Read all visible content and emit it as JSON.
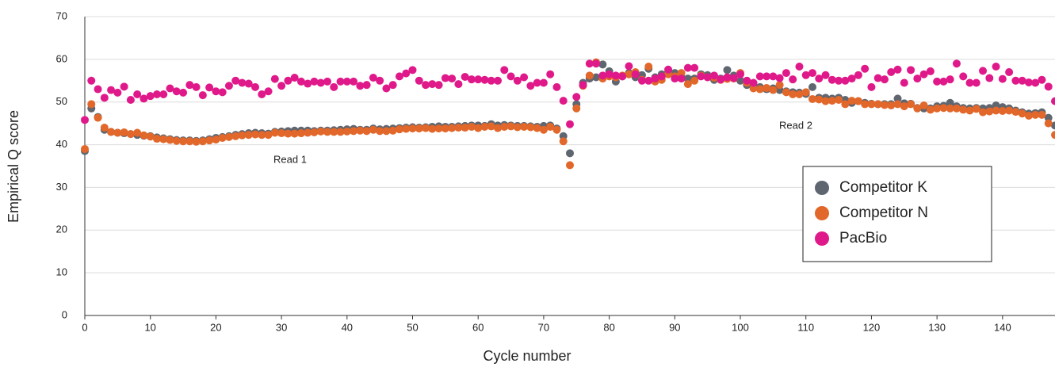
{
  "chart_data": {
    "type": "scatter",
    "xlabel": "Cycle number",
    "ylabel": "Empirical Q score",
    "annotations": [
      "Read 1",
      "Read 2"
    ],
    "xlim": [
      0,
      148
    ],
    "ylim": [
      0,
      70
    ],
    "xticks": [
      0,
      10,
      20,
      30,
      40,
      50,
      60,
      70,
      80,
      90,
      100,
      110,
      120,
      130,
      140
    ],
    "yticks": [
      0,
      10,
      20,
      30,
      40,
      50,
      60,
      70
    ],
    "grid": true,
    "legend": "right",
    "x": [
      0,
      1,
      2,
      3,
      4,
      5,
      6,
      7,
      8,
      9,
      10,
      11,
      12,
      13,
      14,
      15,
      16,
      17,
      18,
      19,
      20,
      21,
      22,
      23,
      24,
      25,
      26,
      27,
      28,
      29,
      30,
      31,
      32,
      33,
      34,
      35,
      36,
      37,
      38,
      39,
      40,
      41,
      42,
      43,
      44,
      45,
      46,
      47,
      48,
      49,
      50,
      51,
      52,
      53,
      54,
      55,
      56,
      57,
      58,
      59,
      60,
      61,
      62,
      63,
      64,
      65,
      66,
      67,
      68,
      69,
      70,
      71,
      72,
      73,
      74,
      75,
      76,
      77,
      78,
      79,
      80,
      81,
      82,
      83,
      84,
      85,
      86,
      87,
      88,
      89,
      90,
      91,
      92,
      93,
      94,
      95,
      96,
      97,
      98,
      99,
      100,
      101,
      102,
      103,
      104,
      105,
      106,
      107,
      108,
      109,
      110,
      111,
      112,
      113,
      114,
      115,
      116,
      117,
      118,
      119,
      120,
      121,
      122,
      123,
      124,
      125,
      126,
      127,
      128,
      129,
      130,
      131,
      132,
      133,
      134,
      135,
      136,
      137,
      138,
      139,
      140,
      141,
      142,
      143,
      144,
      145,
      146,
      147,
      148
    ],
    "series": [
      {
        "name": "Competitor K",
        "color": "#5f6670",
        "values": [
          38.5,
          48.5,
          46.5,
          43.5,
          43,
          42.8,
          42.7,
          42.5,
          42.3,
          42.1,
          42,
          41.7,
          41.5,
          41.3,
          41.1,
          41,
          41,
          40.9,
          41,
          41.3,
          41.6,
          41.8,
          42,
          42.3,
          42.5,
          42.7,
          42.8,
          42.7,
          42.6,
          43,
          43.1,
          43.2,
          43.3,
          43.3,
          43.3,
          43.2,
          43.3,
          43.3,
          43.4,
          43.5,
          43.6,
          43.7,
          43.5,
          43.5,
          43.8,
          43.6,
          43.7,
          43.8,
          43.9,
          44,
          44.1,
          44,
          44.1,
          44.2,
          44.3,
          44.2,
          44.2,
          44.3,
          44.4,
          44.5,
          44.5,
          44.4,
          44.8,
          44.5,
          44.6,
          44.5,
          44.4,
          44.4,
          44.3,
          44.2,
          44.4,
          44.5,
          43.8,
          42,
          38,
          49.5,
          54.5,
          55.5,
          55.8,
          58.8,
          57.2,
          54.8,
          56,
          56.8,
          55.8,
          56.3,
          57.8,
          55.8,
          56.5,
          57,
          56.8,
          55.8,
          55.5,
          55.5,
          56.5,
          56.3,
          55.2,
          55.5,
          57.5,
          56.2,
          55,
          54,
          53.8,
          53.5,
          53,
          53.2,
          52.8,
          52.5,
          52.3,
          52.2,
          51.9,
          53.5,
          51,
          51,
          50.8,
          51,
          50.5,
          49.8,
          50.2,
          49.8,
          49.6,
          49.5,
          49.5,
          49.5,
          50.8,
          49.7,
          49.6,
          48.6,
          48.5,
          48.5,
          49,
          49.1,
          49.8,
          49,
          48.6,
          48.5,
          48.6,
          48.5,
          48.6,
          49.2,
          48.8,
          48.5,
          48,
          47.6,
          47.3,
          47.4,
          47.6,
          46.3,
          44.5
        ]
      },
      {
        "name": "Competitor N",
        "color": "#e2672a",
        "values": [
          39,
          49.5,
          46.3,
          44,
          43,
          42.8,
          42.9,
          42.5,
          42.8,
          42.2,
          41.9,
          41.4,
          41.3,
          41.1,
          40.9,
          40.8,
          40.8,
          40.7,
          40.8,
          41,
          41.2,
          41.6,
          41.8,
          42,
          42.2,
          42.3,
          42.4,
          42.3,
          42.3,
          42.8,
          42.7,
          42.6,
          42.6,
          42.7,
          42.8,
          42.9,
          43.1,
          43,
          43,
          43,
          43.1,
          43.2,
          43.3,
          43.2,
          43.5,
          43.2,
          43.2,
          43.3,
          43.6,
          43.7,
          43.8,
          43.8,
          43.9,
          43.7,
          43.8,
          43.8,
          43.9,
          44,
          44,
          44.2,
          43.9,
          44.2,
          44.3,
          43.9,
          44.2,
          44.3,
          44.1,
          44.2,
          44.1,
          43.9,
          43.5,
          44.2,
          43.5,
          40.8,
          35.2,
          48.5,
          53.8,
          56.2,
          59.3,
          55.5,
          56,
          55.8,
          56.2,
          56.5,
          57,
          55.2,
          58.3,
          54.8,
          55.2,
          56.5,
          56,
          56.8,
          54.2,
          55,
          56.2,
          55.8,
          55.7,
          55.2,
          55.4,
          55.5,
          56.8,
          54.5,
          53.2,
          53,
          53.3,
          52.8,
          54,
          52.3,
          51.8,
          51.8,
          52.3,
          50.7,
          50.6,
          50.2,
          50.3,
          50.5,
          49.5,
          50.3,
          50.2,
          49.5,
          49.5,
          49.5,
          49.3,
          49.2,
          49.5,
          49,
          49.5,
          48.5,
          49.2,
          48.2,
          48.5,
          48.6,
          48.5,
          48.5,
          48.2,
          48,
          48.4,
          47.6,
          47.8,
          48,
          47.9,
          48,
          47.7,
          47.3,
          46.8,
          47,
          47,
          45,
          42.3
        ]
      },
      {
        "name": "PacBio",
        "color": "#e0198a",
        "values": [
          45.8,
          55,
          53,
          51,
          52.8,
          52.2,
          53.6,
          50.5,
          51.8,
          50.8,
          51.4,
          51.8,
          51.8,
          53.2,
          52.5,
          52.2,
          54,
          53.5,
          51.6,
          53.4,
          52.5,
          52.3,
          53.8,
          55,
          54.5,
          54.3,
          53.5,
          51.8,
          52.5,
          55.4,
          53.8,
          55,
          55.7,
          54.8,
          54.3,
          54.8,
          54.5,
          54.8,
          53.5,
          54.8,
          54.8,
          54.8,
          53.8,
          54,
          55.7,
          55,
          53.2,
          54,
          56,
          56.7,
          57.5,
          55,
          54,
          54.2,
          54,
          55.6,
          55.5,
          54.2,
          55.9,
          55.3,
          55.3,
          55.2,
          55,
          55,
          57.5,
          56,
          55,
          55.8,
          53.8,
          54.5,
          54.5,
          56.5,
          53.5,
          50.3,
          44.8,
          51.2,
          54,
          59,
          59,
          56.2,
          56.5,
          56.2,
          56,
          58.4,
          56.5,
          55,
          55,
          55.5,
          56,
          57.6,
          55.5,
          55.5,
          58,
          58,
          56,
          55.8,
          56.2,
          55.3,
          55.8,
          55.6,
          56.5,
          55,
          54.5,
          56,
          56,
          56,
          55.6,
          56.8,
          55.3,
          58.3,
          56.3,
          56.8,
          55.5,
          56.3,
          55.2,
          55,
          55,
          55.5,
          56.3,
          57.8,
          53.5,
          55.6,
          55.3,
          57,
          57.6,
          54.5,
          57.5,
          55.5,
          56.5,
          57.2,
          54.8,
          54.8,
          55.3,
          59,
          56,
          54.5,
          54.5,
          57.3,
          55.6,
          58.3,
          55.4,
          57,
          55,
          55,
          54.6,
          54.5,
          55.2,
          53.6,
          50.2
        ]
      }
    ]
  }
}
